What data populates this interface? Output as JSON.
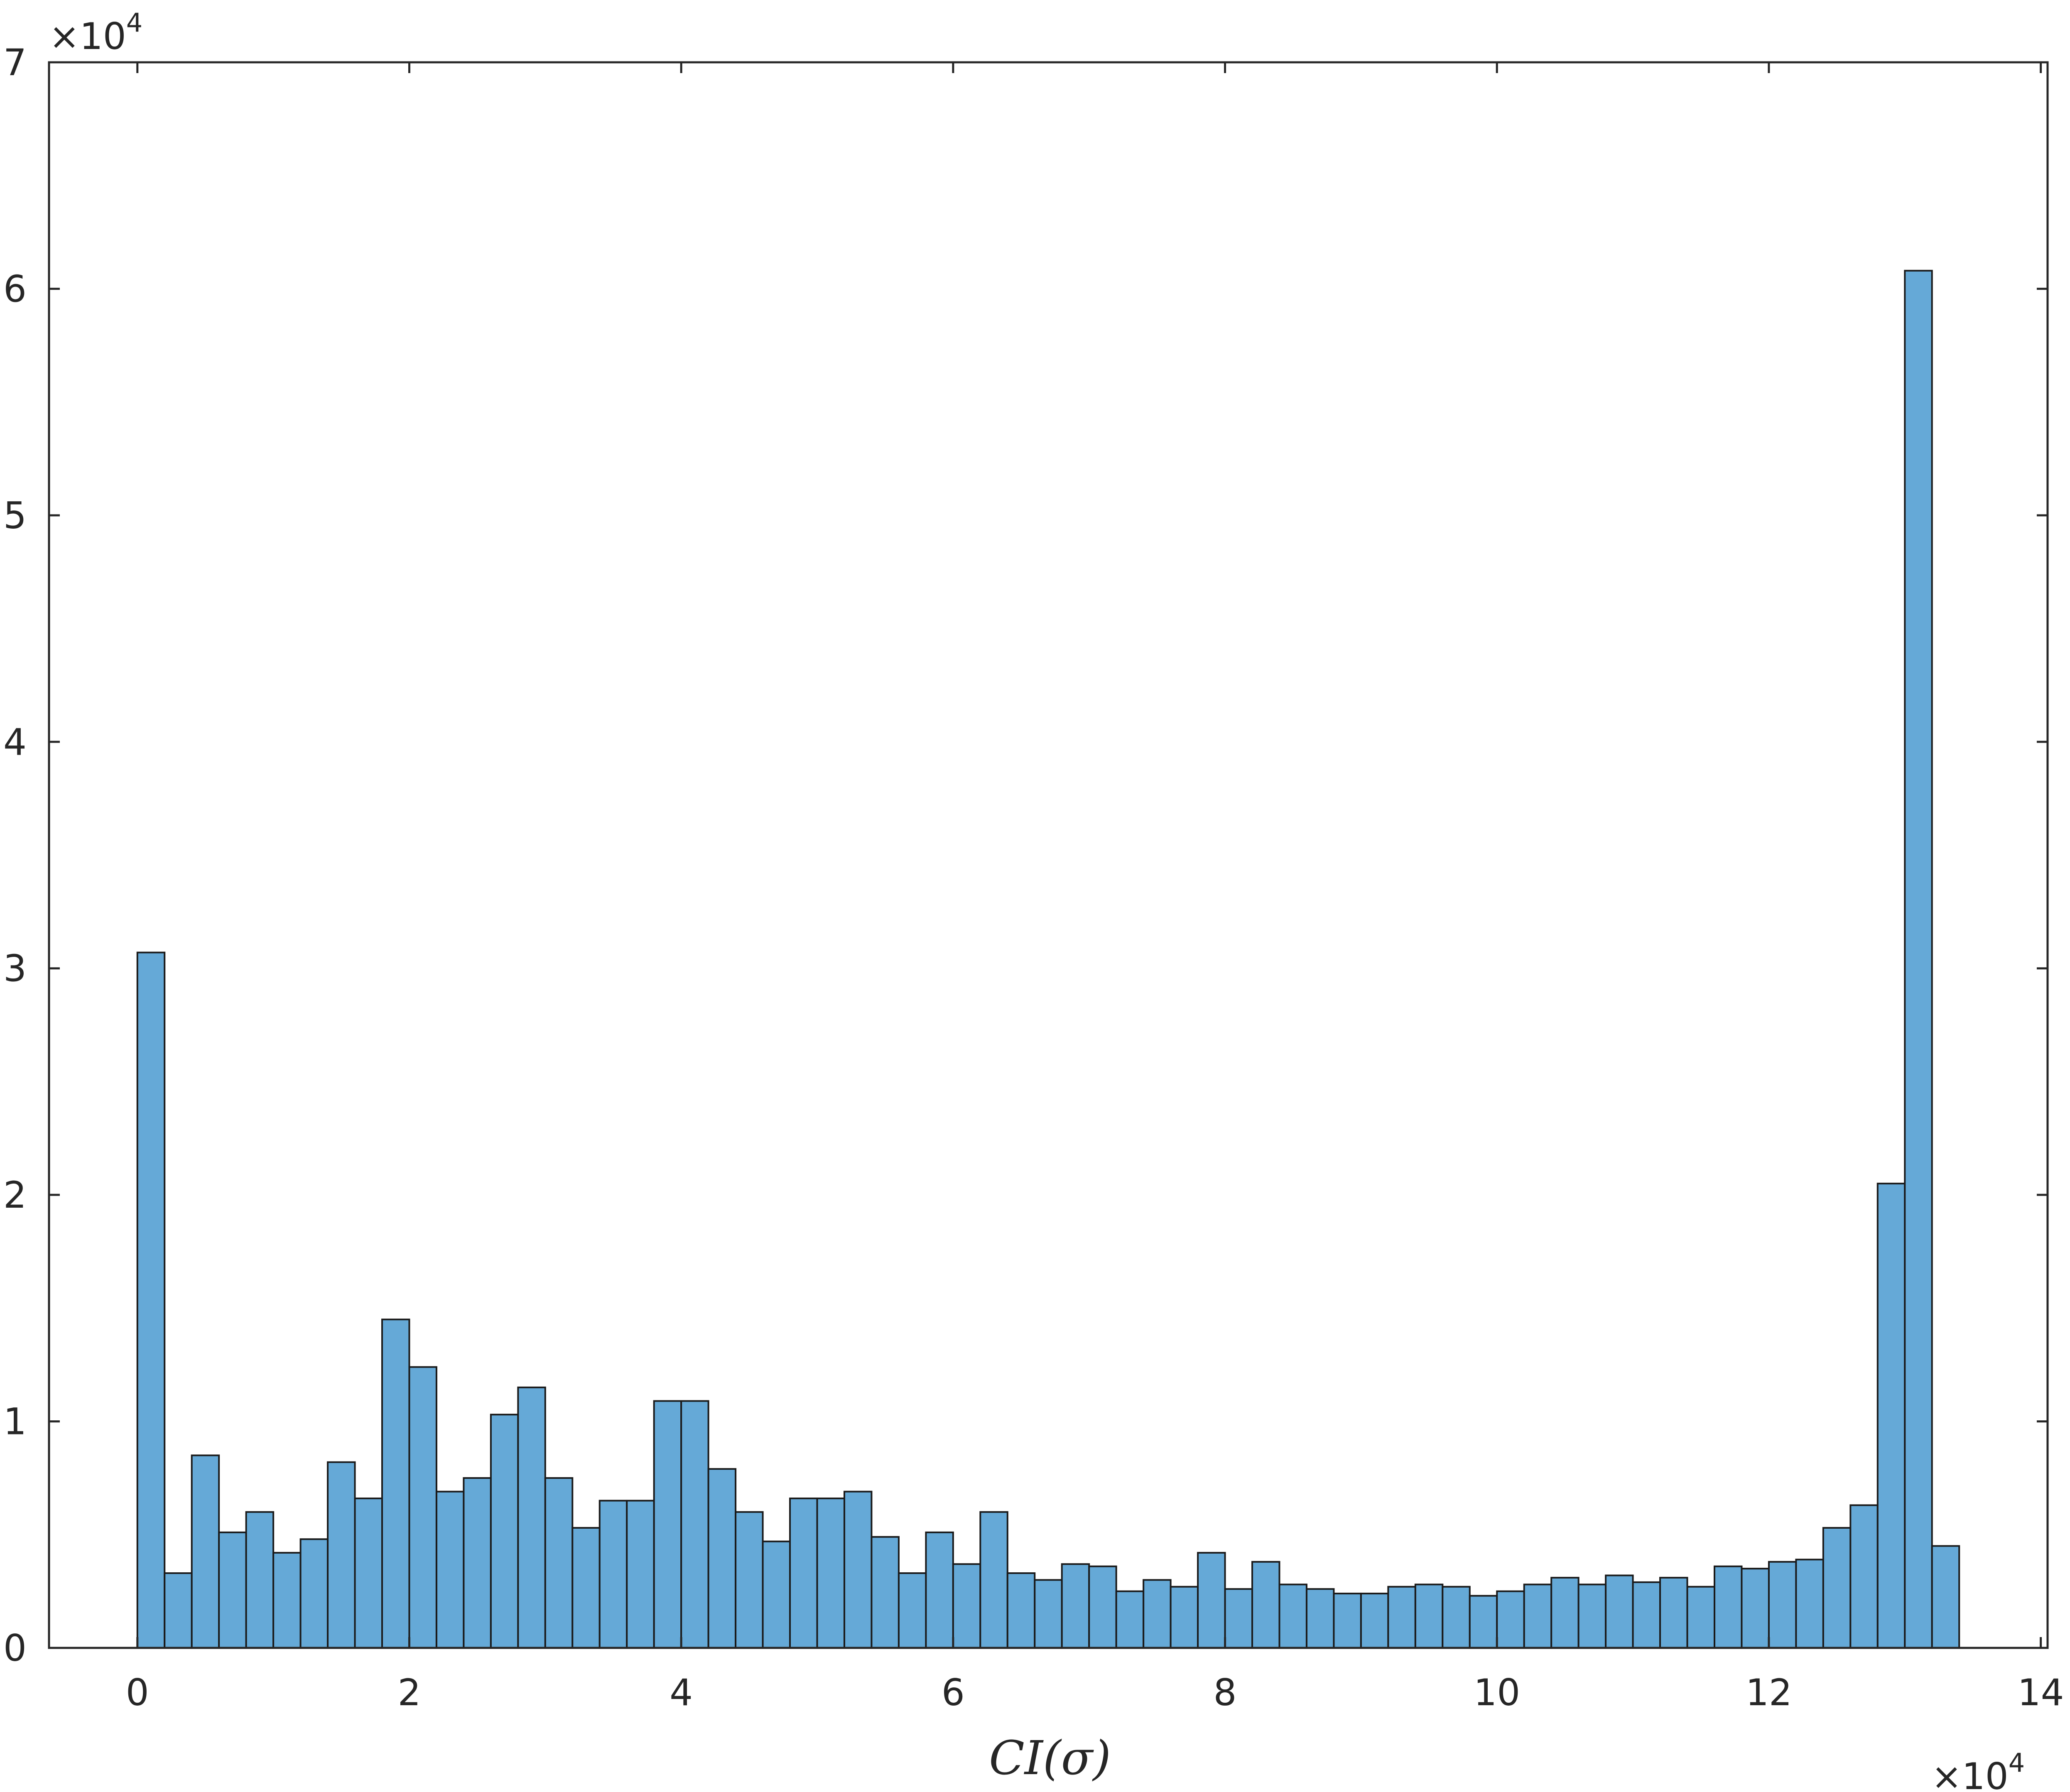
{
  "chart_data": {
    "type": "bar",
    "title": "",
    "xlabel": "CI(σ)",
    "ylabel": "",
    "xlim": [
      -0.65,
      14.05
    ],
    "ylim": [
      0,
      7
    ],
    "x_ticks": [
      0,
      2,
      4,
      6,
      8,
      10,
      12,
      14
    ],
    "x_tick_labels": [
      "0",
      "2",
      "4",
      "6",
      "8",
      "10",
      "12",
      "14"
    ],
    "y_ticks": [
      0,
      1,
      2,
      3,
      4,
      5,
      6,
      7
    ],
    "y_tick_labels": [
      "0",
      "1",
      "2",
      "3",
      "4",
      "5",
      "6",
      "7"
    ],
    "x_multiplier": {
      "base": "×10",
      "exponent": "4"
    },
    "y_multiplier": {
      "base": "×10",
      "exponent": "4"
    },
    "grid": false,
    "bar_color": "#65a9d7",
    "edge_color": "#1a1a1a",
    "bin_start": 0,
    "bin_width": 0.2,
    "values": [
      3.07,
      0.33,
      0.85,
      0.51,
      0.6,
      0.42,
      0.48,
      0.82,
      0.66,
      1.45,
      1.24,
      0.69,
      0.75,
      1.03,
      1.15,
      0.75,
      0.53,
      0.65,
      0.65,
      1.09,
      1.09,
      0.79,
      0.6,
      0.47,
      0.66,
      0.66,
      0.69,
      0.49,
      0.33,
      0.51,
      0.37,
      0.6,
      0.33,
      0.3,
      0.37,
      0.36,
      0.25,
      0.3,
      0.27,
      0.42,
      0.26,
      0.38,
      0.28,
      0.26,
      0.24,
      0.24,
      0.27,
      0.28,
      0.27,
      0.23,
      0.25,
      0.28,
      0.31,
      0.28,
      0.32,
      0.29,
      0.31,
      0.27,
      0.36,
      0.35,
      0.38,
      0.39,
      0.53,
      0.63,
      2.05,
      6.08,
      0.45
    ]
  }
}
